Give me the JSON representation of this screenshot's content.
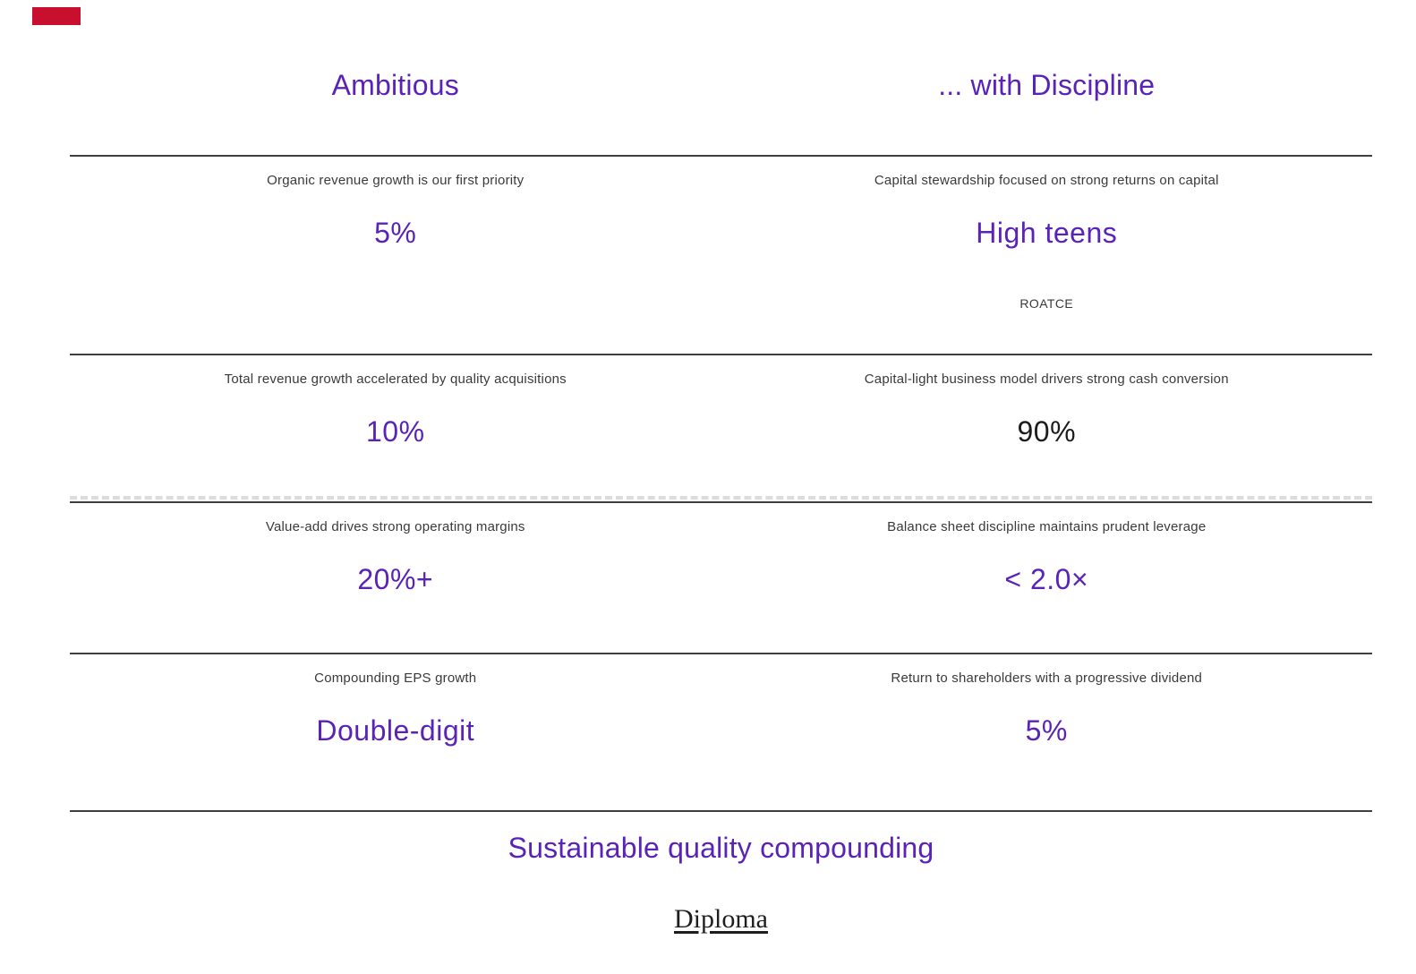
{
  "page": {
    "background": "#ffffff",
    "accent_purple": "#5a23b8",
    "logo_red": "#c8102e",
    "rule_color": "#3f3f3f",
    "label_color": "#3a3a3a",
    "dark_value_color": "#1c1c1c"
  },
  "header": {
    "left_title": "Ambitious",
    "right_title": "... with Discipline"
  },
  "rows": [
    {
      "left": {
        "label": "Organic revenue growth is our first priority",
        "value": "5%"
      },
      "right": {
        "label": "Capital stewardship focused on strong returns on capital",
        "value": "High teens",
        "sub_label": "ROATCE"
      }
    },
    {
      "left": {
        "label": "Total revenue growth accelerated by quality acquisitions",
        "value": "10%"
      },
      "right": {
        "label": "Capital-light business model drivers strong cash conversion",
        "value": "90%"
      }
    },
    {
      "left": {
        "label": "Value-add drives strong operating margins",
        "value": "20%+"
      },
      "right": {
        "label": "Balance sheet discipline maintains prudent leverage",
        "value": "< 2.0×"
      }
    },
    {
      "left": {
        "label": "Compounding EPS growth",
        "value": "Double-digit"
      },
      "right": {
        "label": "Return to shareholders with a progressive dividend",
        "value": "5%"
      }
    }
  ],
  "footer": {
    "tagline": "Sustainable quality compounding",
    "brand": "Diploma"
  }
}
